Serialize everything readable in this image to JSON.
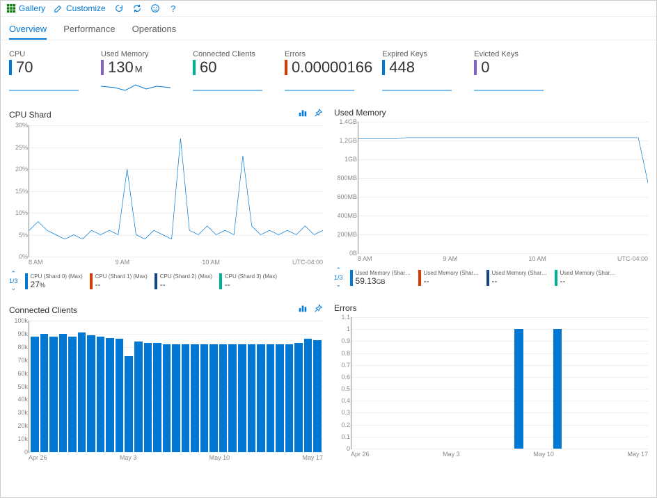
{
  "toolbar": {
    "gallery": "Gallery",
    "customize": "Customize"
  },
  "tabs": [
    {
      "label": "Overview",
      "active": true
    },
    {
      "label": "Performance",
      "active": false
    },
    {
      "label": "Operations",
      "active": false
    }
  ],
  "metrics": [
    {
      "label": "CPU",
      "value": "70",
      "unit": "",
      "color": "#0078d4",
      "spark_color": "#0078d4"
    },
    {
      "label": "Used Memory",
      "value": "130",
      "unit": "M",
      "color": "#8661c5",
      "spark_color": "#0078d4"
    },
    {
      "label": "Connected Clients",
      "value": "60",
      "unit": "",
      "color": "#00b294",
      "spark_color": "#0078d4"
    },
    {
      "label": "Errors",
      "value": "0.00000166",
      "unit": "",
      "color": "#d83b01",
      "spark_color": "#0078d4"
    },
    {
      "label": "Expired Keys",
      "value": "448",
      "unit": "",
      "color": "#0078d4",
      "spark_color": "#0078d4"
    },
    {
      "label": "Evicted Keys",
      "value": "0",
      "unit": "",
      "color": "#8661c5",
      "spark_color": "#0078d4"
    }
  ],
  "cpu_shard": {
    "title": "CPU Shard",
    "ylim": [
      0,
      30
    ],
    "ytick_step": 5,
    "yticks": [
      "0%",
      "5%",
      "10%",
      "15%",
      "20%",
      "25%",
      "30%"
    ],
    "xlabels": [
      "8 AM",
      "9 AM",
      "10 AM",
      "UTC-04:00"
    ],
    "line_color": "#0078d4",
    "values": [
      6,
      8,
      6,
      5,
      4,
      5,
      4,
      6,
      5,
      6,
      5,
      20,
      5,
      4,
      6,
      5,
      4,
      27,
      6,
      5,
      7,
      5,
      6,
      5,
      23,
      7,
      5,
      6,
      5,
      6,
      5,
      7,
      5,
      6
    ],
    "legend_page": "1/3",
    "legend": [
      {
        "label": "CPU (Shard 0) (Max)",
        "value": "27",
        "unit": "%",
        "color": "#0078d4"
      },
      {
        "label": "CPU (Shard 1) (Max)",
        "value": "--",
        "unit": "",
        "color": "#d83b01"
      },
      {
        "label": "CPU (Shard 2) (Max)",
        "value": "--",
        "unit": "",
        "color": "#13438f"
      },
      {
        "label": "CPU (Shard 3) (Max)",
        "value": "--",
        "unit": "",
        "color": "#00b294"
      }
    ]
  },
  "used_memory": {
    "title": "Used Memory",
    "yticks": [
      "0B",
      "200MB",
      "400MB",
      "600MB",
      "800MB",
      "1GB",
      "1.2GB",
      "1.4GB"
    ],
    "xlabels": [
      "8 AM",
      "9 AM",
      "10 AM",
      "UTC-04:00"
    ],
    "line_color": "#0078d4",
    "values": [
      1.22,
      1.22,
      1.22,
      1.22,
      1.22,
      1.23,
      1.23,
      1.23,
      1.23,
      1.23,
      1.23,
      1.23,
      1.23,
      1.23,
      1.23,
      1.23,
      1.23,
      1.23,
      1.23,
      1.23,
      1.23,
      1.23,
      1.23,
      1.23,
      1.23,
      1.23,
      1.23,
      1.23,
      1.23,
      1.23,
      0.75
    ],
    "ylim": [
      0,
      1.4
    ],
    "legend_page": "1/3",
    "legend": [
      {
        "label": "Used Memory (Shard 0...",
        "value": "59.13",
        "unit": "GB",
        "color": "#0078d4"
      },
      {
        "label": "Used Memory (Shard 2...",
        "value": "--",
        "unit": "",
        "color": "#d83b01"
      },
      {
        "label": "Used Memory (Shard 2...",
        "value": "--",
        "unit": "",
        "color": "#13438f"
      },
      {
        "label": "Used Memory (Shard 3...",
        "value": "--",
        "unit": "",
        "color": "#00b294"
      }
    ]
  },
  "connected_clients": {
    "title": "Connected Clients",
    "yticks": [
      "0",
      "10k",
      "20k",
      "30k",
      "40k",
      "50k",
      "60k",
      "70k",
      "80k",
      "90k",
      "100k"
    ],
    "ylim": [
      0,
      100
    ],
    "xlabels": [
      "Apr 26",
      "May 3",
      "May 10",
      "May 17"
    ],
    "bar_color": "#0078d4",
    "values": [
      88,
      90,
      88,
      90,
      88,
      91,
      89,
      88,
      87,
      86,
      73,
      84,
      83,
      83,
      82,
      82,
      82,
      82,
      82,
      82,
      82,
      82,
      82,
      82,
      82,
      82,
      82,
      82,
      83,
      86,
      85
    ]
  },
  "errors": {
    "title": "Errors",
    "yticks": [
      "0",
      "0.1",
      "0.2",
      "0.3",
      "0.4",
      "0.5",
      "0.6",
      "0.7",
      "0.8",
      "0.9",
      "1",
      "1.1"
    ],
    "ylim": [
      0,
      1.1
    ],
    "xlabels": [
      "Apr 26",
      "May 3",
      "May 10",
      "May 17"
    ],
    "bar_color": "#0078d4",
    "bars": [
      {
        "pos": 0.55,
        "val": 1.0
      },
      {
        "pos": 0.68,
        "val": 1.0
      }
    ]
  },
  "colors": {
    "accent": "#0078d4",
    "grid": "#eeeeee",
    "axis": "#888888",
    "text": "#323130",
    "muted": "#605e5c"
  }
}
